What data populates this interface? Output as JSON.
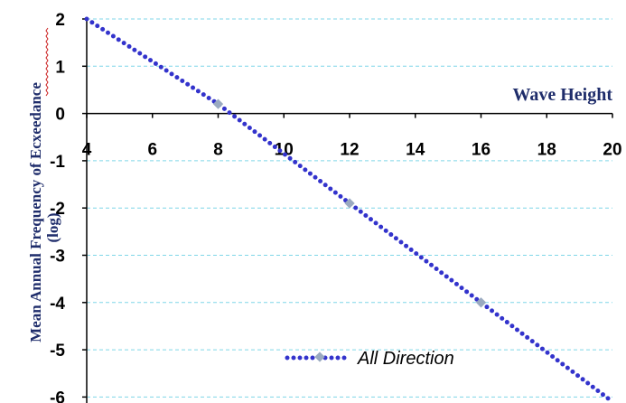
{
  "chart_data": {
    "type": "line",
    "xlabel": "Wave Height",
    "ylabel_line1": "Mean Annual Frequency of  Ecxeedance",
    "ylabel_line2": "(log)",
    "xlim": [
      4,
      20
    ],
    "ylim": [
      -6,
      2
    ],
    "x_ticks": [
      "4",
      "6",
      "8",
      "10",
      "12",
      "14",
      "16",
      "18",
      "20"
    ],
    "y_ticks": [
      "2",
      "1",
      "0",
      "-1",
      "-2",
      "-3",
      "-4",
      "-5",
      "-6"
    ],
    "grid": true,
    "legend_position": "bottom-center",
    "series": [
      {
        "name": "All Direction",
        "color": "#3333cc",
        "marker_color": "#9aaac0",
        "line_style": "dotted",
        "x": [
          4,
          8,
          12,
          16,
          20
        ],
        "y": [
          2,
          0.2,
          -1.9,
          -4.0,
          -6.1
        ],
        "markers": [
          [
            8,
            0.2
          ],
          [
            12,
            -1.9
          ],
          [
            16,
            -4.0
          ]
        ]
      }
    ]
  }
}
